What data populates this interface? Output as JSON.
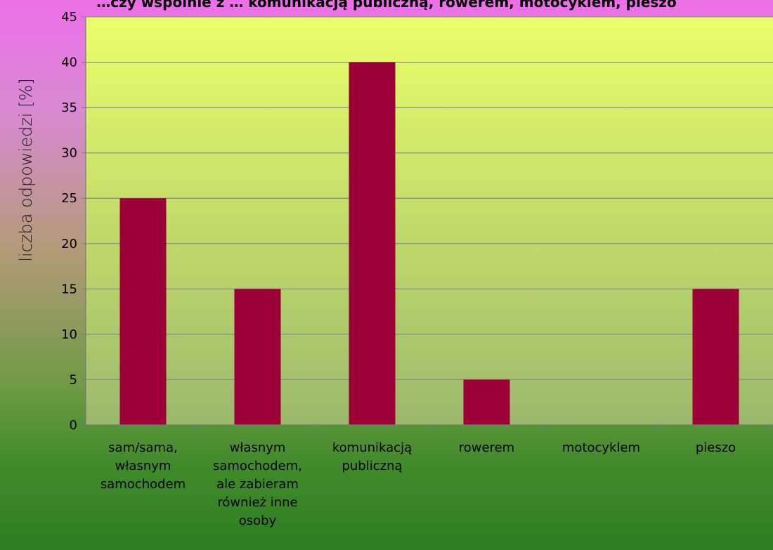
{
  "chart_data": {
    "type": "bar",
    "title": "…czy wspólnie z … komunikacją publiczną, rowerem, motocyklem, pieszo",
    "xlabel": "",
    "ylabel": "liczba odpowiedzi [%]",
    "ylim": [
      0,
      45
    ],
    "yticks": [
      0,
      5,
      10,
      15,
      20,
      25,
      30,
      35,
      40,
      45
    ],
    "grid": true,
    "legend": "none",
    "categories": [
      [
        "sam/sama,",
        "własnym",
        "samochodem"
      ],
      [
        "własnym",
        "samochodem,",
        "ale zabieram",
        "również inne",
        "osoby"
      ],
      [
        "komunikacją",
        "publiczną"
      ],
      [
        "rowerem"
      ],
      [
        "motocyklem"
      ],
      [
        "pieszo"
      ]
    ],
    "values": [
      25,
      15,
      40,
      5,
      0,
      15
    ],
    "colors": {
      "bar": "#9b0036",
      "plot_top": "#eaff6a",
      "plot_bottom": "#9cb86c",
      "grid": "#8a8a8a",
      "axis": "#7a7a7a"
    }
  }
}
